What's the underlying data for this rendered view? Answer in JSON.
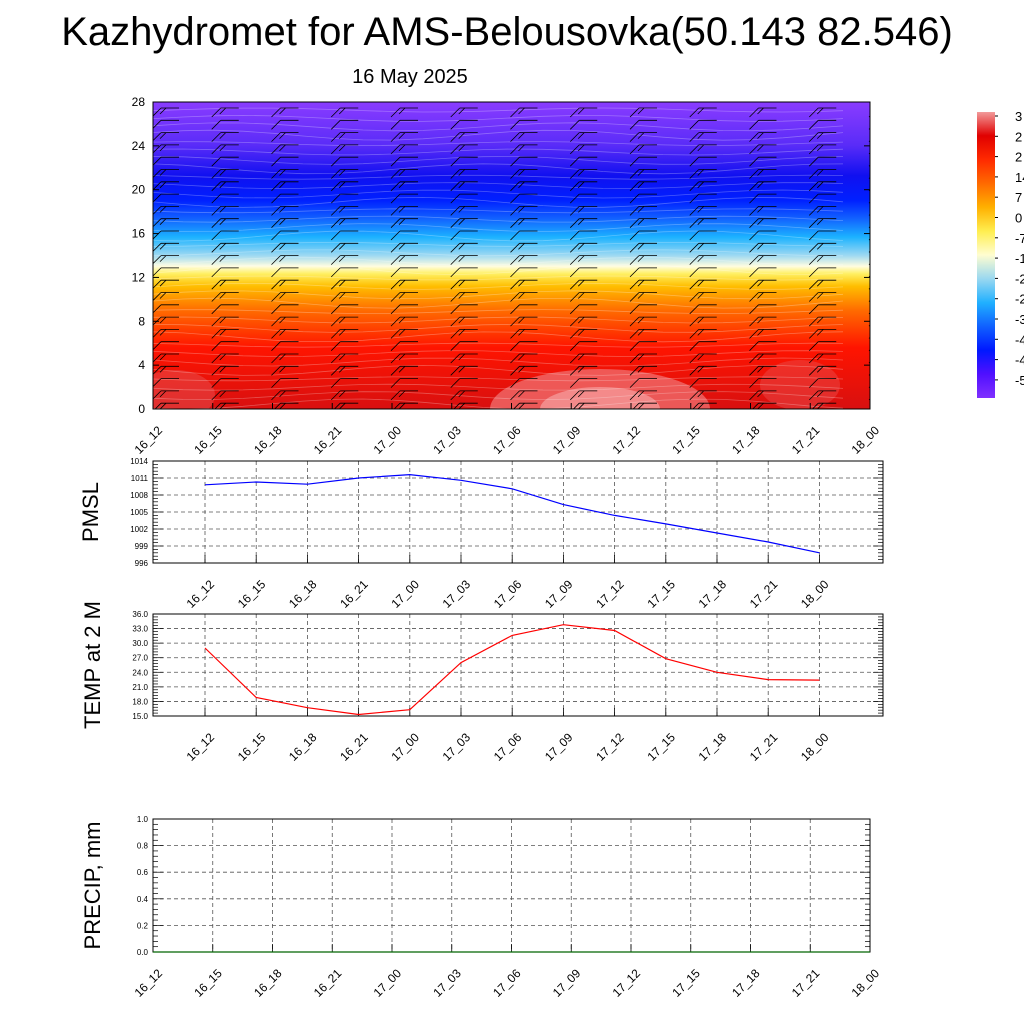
{
  "header": {
    "title": "Kazhydromet for AMS-Belousovka(50.143 82.546)",
    "date": "16 May 2025"
  },
  "time_labels": [
    "16_12",
    "16_15",
    "16_18",
    "16_21",
    "17_00",
    "17_03",
    "17_06",
    "17_09",
    "17_12",
    "17_15",
    "17_18",
    "17_21",
    "18_00"
  ],
  "colors": {
    "pmsl_line": "#0000ff",
    "temp_line": "#ff0000",
    "precip_line": "#006400",
    "grid": "#555555"
  },
  "chart_data": [
    {
      "type": "heatmap",
      "name": "height-time-section",
      "ylim": [
        0,
        28
      ],
      "yticks": [
        0,
        4,
        8,
        12,
        16,
        20,
        24,
        28
      ],
      "x": [
        "16_12",
        "16_15",
        "16_18",
        "16_21",
        "17_00",
        "17_03",
        "17_06",
        "17_09",
        "17_12",
        "17_15",
        "17_18",
        "17_21",
        "18_00"
      ],
      "colorbar_labels": [
        "3",
        "2",
        "2",
        "14",
        "7",
        "0",
        "-7",
        "-1",
        "-2",
        "-2",
        "-3",
        "-4",
        "-4",
        "-5"
      ],
      "colorbar_stops": [
        "#f29a9a",
        "#e00000",
        "#ff2a00",
        "#ff6a00",
        "#ffb000",
        "#ffee50",
        "#fffdd0",
        "#9ad8f0",
        "#20b0ff",
        "#1060ff",
        "#0018ff",
        "#5010ff",
        "#8030ff"
      ],
      "features": "wind barbs"
    },
    {
      "type": "line",
      "name": "PMSL",
      "ylabel": "PMSL",
      "ylim": [
        996,
        1014
      ],
      "yticks": [
        996,
        999,
        1002,
        1005,
        1008,
        1011,
        1014
      ],
      "x": [
        "16_12",
        "16_15",
        "16_18",
        "16_21",
        "17_00",
        "17_03",
        "17_06",
        "17_09",
        "17_12",
        "17_15",
        "17_18",
        "17_21",
        "18_00"
      ],
      "values": [
        1009.8,
        1010.3,
        1009.9,
        1011.0,
        1011.6,
        1010.6,
        1009.1,
        1006.3,
        1004.4,
        1002.9,
        1001.3,
        999.7,
        997.8
      ]
    },
    {
      "type": "line",
      "name": "TEMP at 2 M",
      "ylabel": "TEMP at 2 M",
      "ylim": [
        15.0,
        36.0
      ],
      "yticks": [
        "15.0",
        "18.0",
        "21.0",
        "24.0",
        "27.0",
        "30.0",
        "33.0",
        "36.0"
      ],
      "x": [
        "16_12",
        "16_15",
        "16_18",
        "16_21",
        "17_00",
        "17_03",
        "17_06",
        "17_09",
        "17_12",
        "17_15",
        "17_18",
        "17_21",
        "18_00"
      ],
      "values": [
        29.0,
        18.8,
        16.7,
        15.3,
        16.3,
        26.0,
        31.6,
        33.8,
        32.6,
        26.8,
        24.0,
        22.5,
        22.4
      ]
    },
    {
      "type": "line",
      "name": "PRECIP, mm",
      "ylabel": "PRECIP, mm",
      "ylim": [
        0.0,
        1.0
      ],
      "yticks": [
        "0.0",
        "0.2",
        "0.4",
        "0.6",
        "0.8",
        "1.0"
      ],
      "x": [
        "16_12",
        "16_15",
        "16_18",
        "16_21",
        "17_00",
        "17_03",
        "17_06",
        "17_09",
        "17_12",
        "17_15",
        "17_18",
        "17_21",
        "18_00"
      ],
      "values": [
        0,
        0,
        0,
        0,
        0,
        0,
        0,
        0,
        0,
        0,
        0,
        0,
        0
      ]
    }
  ]
}
